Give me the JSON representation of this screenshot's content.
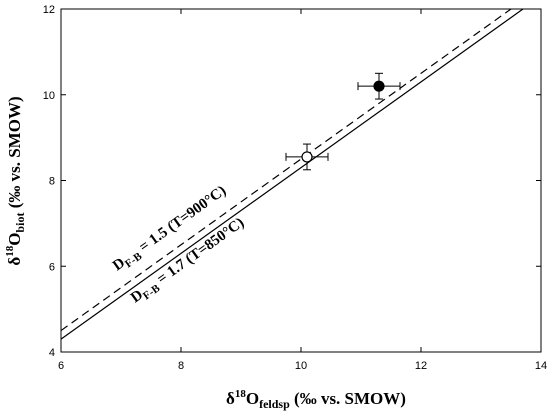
{
  "chart_data": {
    "type": "scatter",
    "xlim": [
      6,
      14
    ],
    "ylim": [
      4,
      12
    ],
    "x_ticks": [
      6,
      8,
      10,
      12,
      14
    ],
    "y_ticks": [
      4,
      6,
      8,
      10,
      12
    ],
    "xlabel": {
      "delta": "δ",
      "sup": "18",
      "main": "O",
      "sub": "feldsp",
      "rest": " (‰  vs. SMOW)"
    },
    "ylabel": {
      "delta": "δ",
      "sup": "18",
      "main": "O",
      "sub": "biot",
      "rest": " (‰  vs. SMOW)"
    },
    "grid": false,
    "points": [
      {
        "x": 10.1,
        "y": 8.55,
        "xerr": 0.35,
        "yerr": 0.3,
        "marker": "open-circle"
      },
      {
        "x": 11.3,
        "y": 10.2,
        "xerr": 0.35,
        "yerr": 0.3,
        "marker": "filled-circle"
      }
    ],
    "lines": [
      {
        "style": "dashed",
        "offset": 1.5,
        "label_main": "D",
        "label_sub": "F-B",
        "label_rest": " = 1.5 (T=900°C)"
      },
      {
        "style": "solid",
        "offset": 1.7,
        "label_main": "D",
        "label_sub": "F-B",
        "label_rest": " = 1.7 (T=850°C)"
      }
    ]
  }
}
